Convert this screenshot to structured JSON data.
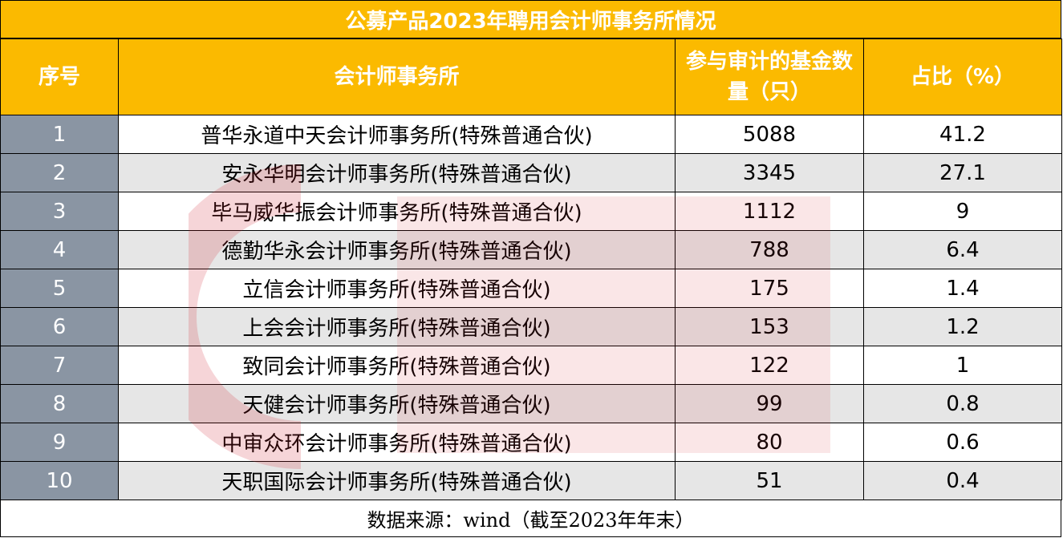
{
  "title": "公募产品2023年聘用会计师事务所情况",
  "headers": {
    "index": "序号",
    "firm": "会计师事务所",
    "funds": "参与审计的基金数量（只）",
    "ratio": "占比（%）"
  },
  "rows": [
    {
      "index": "1",
      "firm": "普华永道中天会计师事务所(特殊普通合伙)",
      "funds": "5088",
      "ratio": "41.2"
    },
    {
      "index": "2",
      "firm": "安永华明会计师事务所(特殊普通合伙)",
      "funds": "3345",
      "ratio": "27.1"
    },
    {
      "index": "3",
      "firm": "毕马威华振会计师事务所(特殊普通合伙)",
      "funds": "1112",
      "ratio": "9"
    },
    {
      "index": "4",
      "firm": "德勤华永会计师事务所(特殊普通合伙)",
      "funds": "788",
      "ratio": "6.4"
    },
    {
      "index": "5",
      "firm": "立信会计师事务所(特殊普通合伙)",
      "funds": "175",
      "ratio": "1.4"
    },
    {
      "index": "6",
      "firm": "上会会计师事务所(特殊普通合伙)",
      "funds": "153",
      "ratio": "1.2"
    },
    {
      "index": "7",
      "firm": "致同会计师事务所(特殊普通合伙)",
      "funds": "122",
      "ratio": "1"
    },
    {
      "index": "8",
      "firm": "天健会计师事务所(特殊普通合伙)",
      "funds": "99",
      "ratio": "0.8"
    },
    {
      "index": "9",
      "firm": "中审众环会计师事务所(特殊普通合伙)",
      "funds": "80",
      "ratio": "0.6"
    },
    {
      "index": "10",
      "firm": "天职国际会计师事务所(特殊普通合伙)",
      "funds": "51",
      "ratio": "0.4"
    }
  ],
  "footer": "数据来源：wind（截至2023年年末）",
  "colors": {
    "header_bg": "#FBBA00",
    "index_bg": "#8A95A3",
    "row_alt_bg": "#E6E6E6",
    "watermark": "#D21E2B"
  }
}
